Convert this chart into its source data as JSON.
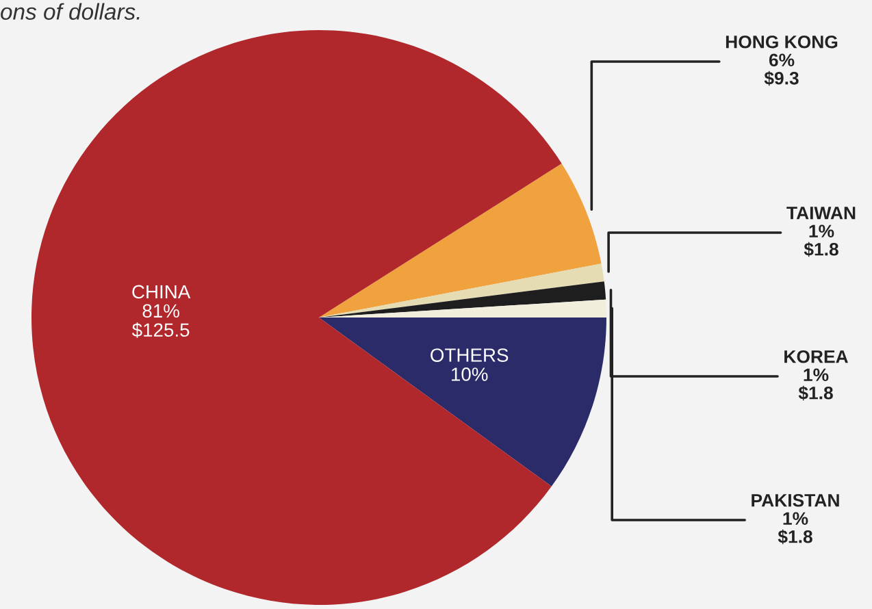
{
  "chart_data": {
    "type": "pie",
    "annotations": [
      "ons of dollars."
    ],
    "categories": [
      "HONG KONG",
      "TAIWAN",
      "KOREA",
      "PAKISTAN",
      "OTHERS",
      "CHINA"
    ],
    "values": [
      6,
      1,
      1,
      1,
      10,
      81
    ],
    "value_labels": [
      "6%\n$9.3",
      "1%\n$1.8",
      "1%\n$1.8",
      "1%\n$1.8",
      "10%",
      "81%\n$125.5"
    ],
    "colors": [
      "#f0a23e",
      "#e6dcb4",
      "#1e1e1e",
      "#f2eedc",
      "#2a2b68",
      "#b0282c"
    ]
  }
}
